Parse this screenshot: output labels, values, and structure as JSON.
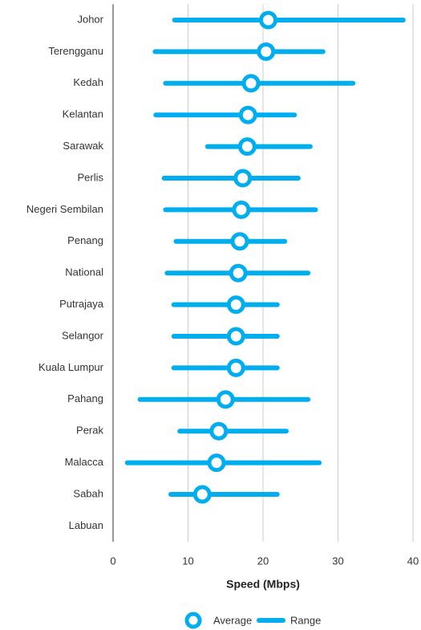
{
  "chart_data": {
    "type": "dot-range",
    "orientation": "horizontal",
    "categories": [
      "Johor",
      "Terengganu",
      "Kedah",
      "Kelantan",
      "Sarawak",
      "Perlis",
      "Negeri Sembilan",
      "Penang",
      "National",
      "Putrajaya",
      "Selangor",
      "Kuala Lumpur",
      "Pahang",
      "Perak",
      "Malacca",
      "Sabah",
      "Labuan"
    ],
    "series": [
      {
        "name": "Average",
        "color": "#00aeef",
        "values": [
          20.7,
          20.4,
          18.4,
          18.0,
          17.9,
          17.3,
          17.1,
          16.9,
          16.7,
          16.4,
          16.4,
          16.4,
          15.0,
          14.1,
          13.8,
          11.9,
          null
        ]
      },
      {
        "name": "Range",
        "color": "#00aeef",
        "low": [
          8.2,
          5.6,
          7.0,
          5.7,
          12.6,
          6.8,
          7.0,
          8.4,
          7.2,
          8.1,
          8.1,
          8.1,
          3.6,
          8.9,
          1.9,
          7.7,
          null
        ],
        "high": [
          38.7,
          28.0,
          32.0,
          24.2,
          26.3,
          24.7,
          27.0,
          22.9,
          26.0,
          21.9,
          21.9,
          21.9,
          26.0,
          23.1,
          27.5,
          21.9,
          null
        ]
      }
    ],
    "x_label": "Speed (Mbps)",
    "xlim": [
      0,
      40
    ],
    "xticks": [
      0,
      10,
      20,
      30,
      40
    ],
    "grid": true,
    "legend": "bottom"
  }
}
